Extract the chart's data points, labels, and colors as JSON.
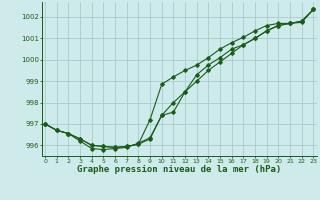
{
  "background_color": "#ceeaea",
  "grid_color": "#aacccc",
  "line_color": "#1a5c1a",
  "title": "Graphe pression niveau de la mer (hPa)",
  "ylim": [
    995.5,
    1002.7
  ],
  "xlim": [
    -0.3,
    23.3
  ],
  "yticks": [
    996,
    997,
    998,
    999,
    1000,
    1001,
    1002
  ],
  "xticks": [
    0,
    1,
    2,
    3,
    4,
    5,
    6,
    7,
    8,
    9,
    10,
    11,
    12,
    13,
    14,
    15,
    16,
    17,
    18,
    19,
    20,
    21,
    22,
    23
  ],
  "line1_x": [
    0,
    1,
    2,
    3,
    4,
    5,
    6,
    7,
    8,
    9,
    10,
    11,
    12,
    13,
    14,
    15,
    16,
    17,
    18,
    19,
    20,
    21,
    22,
    23
  ],
  "line1_y": [
    997.0,
    996.7,
    996.55,
    996.3,
    996.0,
    995.95,
    995.9,
    995.95,
    996.05,
    996.3,
    997.4,
    998.0,
    998.5,
    999.0,
    999.5,
    999.9,
    1000.3,
    1000.7,
    1001.0,
    1001.35,
    1001.6,
    1001.7,
    1001.75,
    1002.35
  ],
  "line2_x": [
    0,
    1,
    2,
    3,
    4,
    5,
    6,
    7,
    8,
    9,
    10,
    11,
    12,
    13,
    14,
    15,
    16,
    17,
    18,
    19,
    20,
    21,
    22,
    23
  ],
  "line2_y": [
    997.0,
    996.7,
    996.55,
    996.3,
    996.0,
    995.95,
    995.9,
    995.95,
    996.05,
    997.2,
    998.85,
    999.2,
    999.5,
    999.75,
    1000.1,
    1000.5,
    1000.8,
    1001.05,
    1001.35,
    1001.6,
    1001.7,
    1001.7,
    1001.8,
    1002.35
  ],
  "line3_x": [
    0,
    1,
    2,
    3,
    4,
    5,
    6,
    7,
    8,
    9,
    10,
    11,
    12,
    13,
    14,
    15,
    16,
    17,
    18,
    19,
    20,
    21,
    22,
    23
  ],
  "line3_y": [
    997.0,
    996.7,
    996.55,
    996.2,
    995.85,
    995.8,
    995.85,
    995.9,
    996.1,
    996.35,
    997.4,
    997.55,
    998.5,
    999.3,
    999.75,
    1000.1,
    1000.5,
    1000.7,
    1001.0,
    1001.35,
    1001.6,
    1001.7,
    1001.8,
    1002.35
  ]
}
